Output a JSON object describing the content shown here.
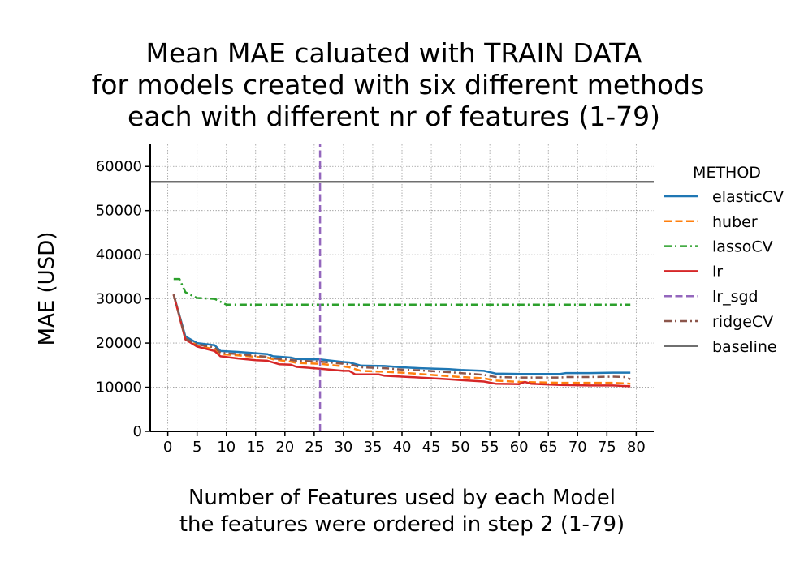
{
  "chart_data": {
    "type": "line",
    "title": [
      "Mean MAE caluated with TRAIN DATA",
      "for models created with six different methods",
      "each with different nr of features (1-79)"
    ],
    "xlabel": [
      "Number of Features used by each Model",
      "the features were ordered in step 2 (1-79)"
    ],
    "ylabel": "MAE (USD)",
    "xlim": [
      -3,
      83
    ],
    "ylim": [
      0,
      65000
    ],
    "xticks": [
      0,
      5,
      10,
      15,
      20,
      25,
      30,
      35,
      40,
      45,
      50,
      55,
      60,
      65,
      70,
      75,
      80
    ],
    "yticks": [
      0,
      10000,
      20000,
      30000,
      40000,
      50000,
      60000
    ],
    "grid": true,
    "legend": {
      "title": "METHOD",
      "position": "right, outside plot"
    },
    "series": [
      {
        "name": "elasticCV",
        "color": "#1f77b4",
        "style": "solid",
        "points": [
          [
            1,
            31000
          ],
          [
            3,
            21500
          ],
          [
            5,
            20000
          ],
          [
            8,
            19500
          ],
          [
            9,
            18200
          ],
          [
            12,
            18000
          ],
          [
            15,
            17700
          ],
          [
            17,
            17500
          ],
          [
            18,
            17000
          ],
          [
            21,
            16700
          ],
          [
            22,
            16400
          ],
          [
            26,
            16300
          ],
          [
            30,
            15700
          ],
          [
            31,
            15600
          ],
          [
            33,
            14900
          ],
          [
            37,
            14800
          ],
          [
            40,
            14500
          ],
          [
            43,
            14300
          ],
          [
            48,
            14100
          ],
          [
            50,
            13900
          ],
          [
            54,
            13700
          ],
          [
            56,
            13100
          ],
          [
            60,
            13000
          ],
          [
            67,
            13000
          ],
          [
            68,
            13200
          ],
          [
            72,
            13200
          ],
          [
            76,
            13300
          ],
          [
            79,
            13300
          ]
        ]
      },
      {
        "name": "huber",
        "color": "#ff7f0e",
        "style": "dashed",
        "points": [
          [
            1,
            31000
          ],
          [
            3,
            21000
          ],
          [
            5,
            19500
          ],
          [
            8,
            18500
          ],
          [
            9,
            17500
          ],
          [
            12,
            17200
          ],
          [
            15,
            16900
          ],
          [
            17,
            16700
          ],
          [
            18,
            16300
          ],
          [
            21,
            15800
          ],
          [
            22,
            15500
          ],
          [
            26,
            15300
          ],
          [
            30,
            14700
          ],
          [
            31,
            14500
          ],
          [
            33,
            13700
          ],
          [
            37,
            13500
          ],
          [
            40,
            13300
          ],
          [
            43,
            13000
          ],
          [
            48,
            12500
          ],
          [
            50,
            12300
          ],
          [
            54,
            12000
          ],
          [
            56,
            11500
          ],
          [
            60,
            11200
          ],
          [
            67,
            11000
          ],
          [
            72,
            11000
          ],
          [
            76,
            11000
          ],
          [
            79,
            10800
          ]
        ]
      },
      {
        "name": "lassoCV",
        "color": "#2ca02c",
        "style": "dashdot",
        "points": [
          [
            1,
            34500
          ],
          [
            2,
            34500
          ],
          [
            3,
            31500
          ],
          [
            5,
            30200
          ],
          [
            8,
            30000
          ],
          [
            10,
            28700
          ],
          [
            20,
            28700
          ],
          [
            30,
            28700
          ],
          [
            40,
            28700
          ],
          [
            50,
            28700
          ],
          [
            60,
            28700
          ],
          [
            70,
            28700
          ],
          [
            79,
            28700
          ]
        ]
      },
      {
        "name": "lr",
        "color": "#d62728",
        "style": "solid",
        "points": [
          [
            1,
            31000
          ],
          [
            3,
            20800
          ],
          [
            5,
            19200
          ],
          [
            8,
            18200
          ],
          [
            9,
            17000
          ],
          [
            12,
            16500
          ],
          [
            15,
            16100
          ],
          [
            17,
            16000
          ],
          [
            19,
            15200
          ],
          [
            21,
            15100
          ],
          [
            22,
            14600
          ],
          [
            26,
            14200
          ],
          [
            30,
            13700
          ],
          [
            31,
            13700
          ],
          [
            32,
            12900
          ],
          [
            36,
            12900
          ],
          [
            37,
            12600
          ],
          [
            40,
            12400
          ],
          [
            43,
            12200
          ],
          [
            48,
            11800
          ],
          [
            50,
            11600
          ],
          [
            54,
            11300
          ],
          [
            56,
            10800
          ],
          [
            60,
            10700
          ],
          [
            61,
            11200
          ],
          [
            62,
            10800
          ],
          [
            67,
            10500
          ],
          [
            72,
            10400
          ],
          [
            76,
            10400
          ],
          [
            79,
            10200
          ]
        ]
      },
      {
        "name": "lr_sgd",
        "color": "#9467bd",
        "style": "dashed",
        "points": [
          [
            26,
            0
          ],
          [
            26,
            65000
          ]
        ]
      },
      {
        "name": "ridgeCV",
        "color": "#8c564b",
        "style": "dashdot",
        "points": [
          [
            1,
            31000
          ],
          [
            3,
            21000
          ],
          [
            5,
            19700
          ],
          [
            8,
            19000
          ],
          [
            9,
            17800
          ],
          [
            12,
            17500
          ],
          [
            15,
            17100
          ],
          [
            17,
            16900
          ],
          [
            18,
            16500
          ],
          [
            21,
            16200
          ],
          [
            22,
            16000
          ],
          [
            26,
            15800
          ],
          [
            30,
            15300
          ],
          [
            31,
            15200
          ],
          [
            33,
            14500
          ],
          [
            37,
            14300
          ],
          [
            40,
            14000
          ],
          [
            43,
            13800
          ],
          [
            48,
            13400
          ],
          [
            50,
            13200
          ],
          [
            54,
            12800
          ],
          [
            56,
            12300
          ],
          [
            60,
            12200
          ],
          [
            67,
            12200
          ],
          [
            68,
            12300
          ],
          [
            72,
            12300
          ],
          [
            76,
            12400
          ],
          [
            78,
            12300
          ],
          [
            79,
            11800
          ]
        ]
      },
      {
        "name": "baseline",
        "color": "#6f6f6f",
        "style": "solid",
        "points": [
          [
            -3,
            56500
          ],
          [
            83,
            56500
          ]
        ]
      }
    ]
  }
}
